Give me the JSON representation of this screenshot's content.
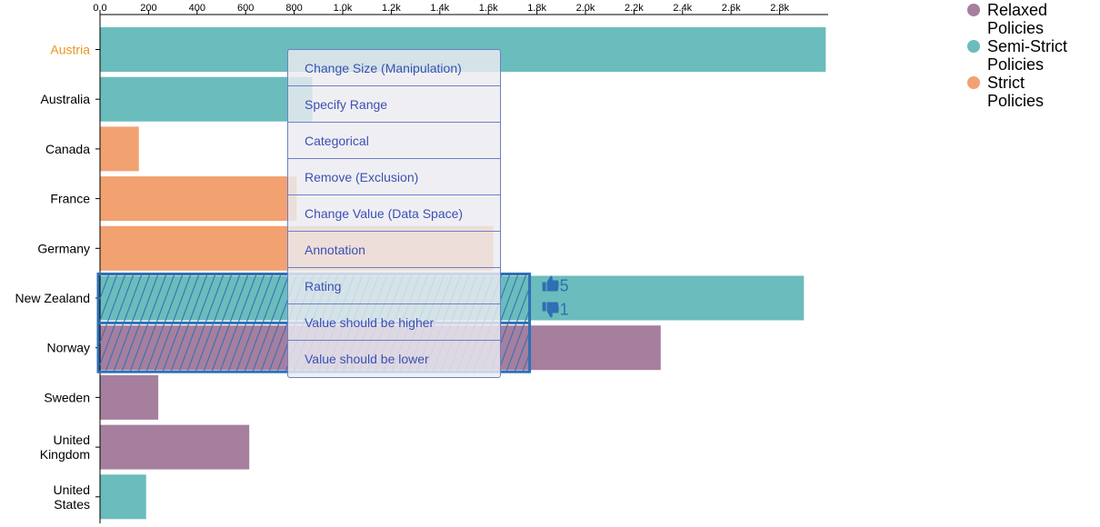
{
  "chart_data": {
    "type": "bar",
    "orientation": "horizontal",
    "categories": [
      "Austria",
      "Australia",
      "Canada",
      "France",
      "Germany",
      "New Zealand",
      "Norway",
      "Sweden",
      "United Kingdom",
      "United States"
    ],
    "values": [
      2990,
      875,
      160,
      810,
      1620,
      2900,
      2310,
      240,
      615,
      190
    ],
    "groups": [
      "Semi-Strict Policies",
      "Semi-Strict Policies",
      "Strict Policies",
      "Strict Policies",
      "Strict Policies",
      "Semi-Strict Policies",
      "Relaxed Policies",
      "Relaxed Policies",
      "Relaxed Policies",
      "Semi-Strict Policies"
    ],
    "highlighted_category": "Austria",
    "xlim": [
      0,
      3000
    ],
    "x_ticks": [
      0,
      200,
      400,
      600,
      800,
      1000,
      1200,
      1400,
      1600,
      1800,
      2000,
      2200,
      2400,
      2600,
      2800
    ],
    "x_tick_labels": [
      "0.0",
      "200",
      "400",
      "600",
      "800",
      "1.0k",
      "1.2k",
      "1.4k",
      "1.6k",
      "1.8k",
      "2.0k",
      "2.2k",
      "2.4k",
      "2.6k",
      "2.8k"
    ],
    "grid": false,
    "legend_position": "top-right",
    "legend": [
      {
        "label": "Relaxed Policies",
        "color": "#a67f9e"
      },
      {
        "label": "Semi-Strict Policies",
        "color": "#6bbcbc"
      },
      {
        "label": "Strict Policies",
        "color": "#f2a170"
      }
    ],
    "sketch_annotation": {
      "target_categories": [
        "New Zealand",
        "Norway"
      ],
      "x_end_value": 1770
    },
    "ratings": {
      "up": "5",
      "down": "1"
    }
  },
  "colors": {
    "highlight_label": "#e8951e",
    "sketch": "#2f6fb5"
  },
  "context_menu": {
    "items": [
      "Change Size (Manipulation)",
      "Specify Range",
      "Categorical",
      "Remove (Exclusion)",
      "Change Value (Data Space)",
      "Annotation",
      "Rating",
      "Value should be higher",
      "Value should be lower"
    ]
  }
}
